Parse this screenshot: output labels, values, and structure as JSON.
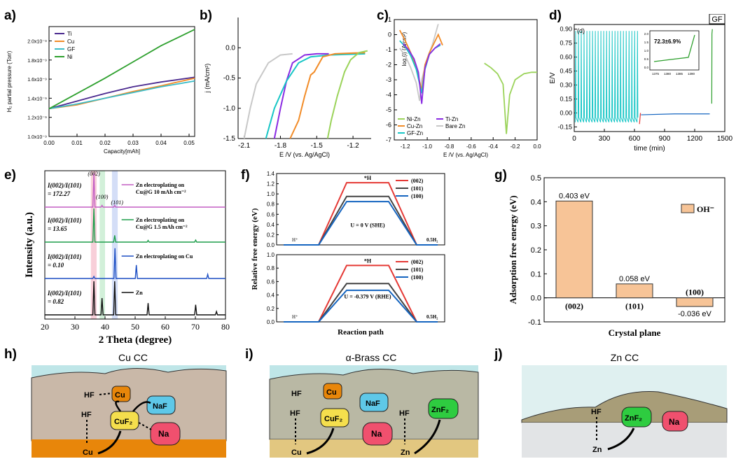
{
  "panels": {
    "a": "a)",
    "b": "b)",
    "c": "c)",
    "d": "d)",
    "e": "e)",
    "f": "f)",
    "g": "g)",
    "h": "h)",
    "i": "i)",
    "j": "j)"
  },
  "colors": {
    "ti": "#4b2a8f",
    "cu": "#f28c28",
    "gf": "#3bbcc7",
    "ni": "#2ea02e",
    "lightgreen": "#9bd35a",
    "grey": "#c8c8c8",
    "cyan": "#18c6c6",
    "purple": "#8a2be2",
    "blue": "#1565c0",
    "red": "#e53935",
    "dgray": "#444444",
    "bar": "#f7c497",
    "barEdge": "#333333",
    "pink": "#c45ec4",
    "xgreen": "#1e9e4b",
    "xblue": "#1d4fc4",
    "black": "#111111"
  },
  "chart_data": [
    {
      "id": "a",
      "type": "line",
      "xlabel": "Capacity[mAh]",
      "ylabel": "H₂ partial pressure (Torr)",
      "xlim": [
        0,
        0.052
      ],
      "ylim": [
        1e-09,
        2.15e-09
      ],
      "xticks": [
        "0.00",
        "0.01",
        "0.02",
        "0.03",
        "0.04",
        "0.05"
      ],
      "xtick_values": [
        0,
        0.01,
        0.02,
        0.03,
        0.04,
        0.05
      ],
      "yticks": [
        "1.0x10⁻⁹",
        "1.2x10⁻⁹",
        "1.4x10⁻⁹",
        "1.6x10⁻⁹",
        "1.8x10⁻⁹",
        "2.0x10⁻⁹"
      ],
      "ytick_values": [
        1e-09,
        1.2e-09,
        1.4e-09,
        1.6e-09,
        1.8e-09,
        2e-09
      ],
      "legend": [
        "Ti",
        "Cu",
        "GF",
        "Ni"
      ],
      "series": [
        {
          "name": "Ti",
          "x": [
            0,
            0.01,
            0.02,
            0.03,
            0.04,
            0.052
          ],
          "y": [
            1.29e-09,
            1.37e-09,
            1.45e-09,
            1.52e-09,
            1.57e-09,
            1.62e-09
          ]
        },
        {
          "name": "Cu",
          "x": [
            0,
            0.01,
            0.02,
            0.03,
            0.04,
            0.052
          ],
          "y": [
            1.29e-09,
            1.33e-09,
            1.4e-09,
            1.47e-09,
            1.53e-09,
            1.61e-09
          ]
        },
        {
          "name": "GF",
          "x": [
            0,
            0.01,
            0.02,
            0.03,
            0.04,
            0.052
          ],
          "y": [
            1.29e-09,
            1.34e-09,
            1.4e-09,
            1.46e-09,
            1.52e-09,
            1.58e-09
          ]
        },
        {
          "name": "Ni",
          "x": [
            0,
            0.01,
            0.02,
            0.03,
            0.04,
            0.052
          ],
          "y": [
            1.29e-09,
            1.45e-09,
            1.61e-09,
            1.78e-09,
            1.95e-09,
            2.12e-09
          ]
        }
      ]
    },
    {
      "id": "b",
      "type": "line",
      "xlabel": "E /V (vs. Ag/AgCl)",
      "ylabel": "j (mA/cm²)",
      "xlim": [
        -2.15,
        -1.05
      ],
      "ylim": [
        -1.5,
        0.5
      ],
      "xticks": [
        "-2.1",
        "-1.8",
        "-1.5",
        "-1.2"
      ],
      "xtick_values": [
        -2.1,
        -1.8,
        -1.5,
        -1.2
      ],
      "yticks": [
        "-1.5",
        "-1.0",
        "-0.5",
        "0.0"
      ],
      "ytick_values": [
        -1.5,
        -1.0,
        -0.5,
        0.0
      ],
      "series": [
        {
          "name": "grey",
          "x": [
            -2.1,
            -2.05,
            -2.0,
            -1.9,
            -1.8,
            -1.7
          ],
          "y": [
            -1.5,
            -1.0,
            -0.6,
            -0.25,
            -0.12,
            -0.1
          ]
        },
        {
          "name": "purple",
          "x": [
            -1.85,
            -1.8,
            -1.75,
            -1.7,
            -1.6,
            -1.5,
            -1.4
          ],
          "y": [
            -1.5,
            -1.0,
            -0.55,
            -0.25,
            -0.12,
            -0.1,
            -0.1
          ]
        },
        {
          "name": "cyan",
          "x": [
            -1.92,
            -1.85,
            -1.75,
            -1.65,
            -1.55,
            -1.4,
            -1.1
          ],
          "y": [
            -1.5,
            -1.0,
            -0.55,
            -0.25,
            -0.15,
            -0.12,
            -0.1
          ]
        },
        {
          "name": "orange",
          "x": [
            -1.72,
            -1.65,
            -1.6,
            -1.55,
            -1.52,
            -1.45,
            -1.35,
            -1.1
          ],
          "y": [
            -1.5,
            -1.2,
            -0.8,
            -0.45,
            -0.4,
            -0.15,
            -0.1,
            -0.08
          ]
        },
        {
          "name": "lightgreen",
          "x": [
            -1.41,
            -1.38,
            -1.33,
            -1.27,
            -1.22,
            -1.15,
            -1.08
          ],
          "y": [
            -1.5,
            -1.2,
            -0.8,
            -0.4,
            -0.2,
            -0.08,
            -0.05
          ]
        }
      ]
    },
    {
      "id": "c",
      "type": "line",
      "xlabel": "E /V (vs. Ag/AgCl)",
      "ylabel": "log (i) (A/cm²)",
      "xlim": [
        -1.3,
        0.0
      ],
      "ylim": [
        -7,
        1
      ],
      "xticks": [
        "-1.2",
        "-1.0",
        "-0.8",
        "-0.6",
        "-0.4",
        "-0.2",
        "0.0"
      ],
      "xtick_values": [
        -1.2,
        -1.0,
        -0.8,
        -0.6,
        -0.4,
        -0.2,
        0.0
      ],
      "yticks": [
        "1",
        "0",
        "-1",
        "-2",
        "-3",
        "-4",
        "-5",
        "-6",
        "-7"
      ],
      "ytick_values": [
        1,
        0,
        -1,
        -2,
        -3,
        -4,
        -5,
        -6,
        -7
      ],
      "legend": [
        "Ni-Zn",
        "Ti-Zn",
        "Cu-Zn",
        "Bare Zn",
        "GF-Zn"
      ],
      "series": [
        {
          "name": "Bare Zn",
          "x": [
            -1.25,
            -1.2,
            -1.15,
            -1.1,
            -1.07,
            -1.05,
            -1.0,
            -0.95,
            -0.9
          ],
          "y": [
            -0.9,
            -1.4,
            -2.2,
            -3.2,
            -4.4,
            -3.0,
            -1.6,
            -0.6,
            0.7
          ]
        },
        {
          "name": "Cu-Zn",
          "x": [
            -1.25,
            -1.2,
            -1.15,
            -1.1,
            -1.05,
            -1.02,
            -0.98,
            -0.94,
            -0.9,
            -0.86
          ],
          "y": [
            0.3,
            -0.4,
            -1.2,
            -2.2,
            -3.7,
            -2.0,
            -1.2,
            -0.6,
            0.0,
            -0.7
          ]
        },
        {
          "name": "GF-Zn",
          "x": [
            -1.25,
            -1.2,
            -1.15,
            -1.1,
            -1.05,
            -1.02,
            -0.98,
            -0.93,
            -0.88
          ],
          "y": [
            -0.4,
            -0.8,
            -1.4,
            -2.3,
            -3.9,
            -2.3,
            -1.3,
            -0.9,
            -0.7
          ]
        },
        {
          "name": "Ti-Zn",
          "x": [
            -1.22,
            -1.17,
            -1.12,
            -1.08,
            -1.05,
            -1.02,
            -0.98,
            -0.93,
            -0.88
          ],
          "y": [
            -0.6,
            -1.0,
            -1.6,
            -2.5,
            -4.6,
            -2.2,
            -1.3,
            -0.9,
            -0.6
          ]
        },
        {
          "name": "Ni-Zn",
          "x": [
            -0.48,
            -0.42,
            -0.36,
            -0.31,
            -0.28,
            -0.25,
            -0.2,
            -0.12,
            -0.05,
            0.0
          ],
          "y": [
            -1.9,
            -2.2,
            -2.6,
            -3.3,
            -6.6,
            -4.0,
            -3.0,
            -2.6,
            -2.5,
            -2.5
          ]
        }
      ]
    },
    {
      "id": "d",
      "type": "line",
      "xlabel": "time (min)",
      "ylabel": "E/V",
      "xlim": [
        0,
        1500
      ],
      "ylim": [
        -0.2,
        2.6
      ],
      "xticks": [
        "0",
        "300",
        "600",
        "900",
        "1200",
        "1500"
      ],
      "xtick_values": [
        0,
        300,
        600,
        900,
        1200,
        1500
      ],
      "yticks": [
        "-0.15",
        "0.00",
        "0.15",
        "0.30",
        "0.45",
        "0.60",
        "0.75",
        "0.90"
      ],
      "ytick_values": [
        -0.15,
        0.0,
        0.15,
        0.3,
        0.45,
        0.6,
        0.75,
        0.9
      ],
      "label_top": "GF",
      "label_inner": "(d)",
      "inset": {
        "annotation": "72.3±6.9%",
        "xticks": [
          "1375",
          "1380",
          "1385",
          "1390"
        ],
        "ytick_labels": [
          "0.0",
          "0.5",
          "1.0",
          "1.5",
          "2.0"
        ]
      }
    },
    {
      "id": "e",
      "type": "line",
      "xlabel": "2 Theta (degree)",
      "ylabel": "Intensity (a.u.)",
      "xlim": [
        20,
        80
      ],
      "xticks": [
        "20",
        "30",
        "40",
        "50",
        "60",
        "70",
        "80"
      ],
      "xtick_values": [
        20,
        30,
        40,
        50,
        60,
        70,
        80
      ],
      "peak_labels": [
        "(002)",
        "(100)",
        "(101)"
      ],
      "series": [
        {
          "name": "Zn electroplating on Cu@G 10 mAh cm⁻²",
          "ratio": "I(002)/I(101)",
          "ratio_value": "= 172.27",
          "peaks": [
            [
              36.3,
              1.0
            ],
            [
              39.0,
              0.05
            ],
            [
              43.2,
              0.05
            ]
          ]
        },
        {
          "name": "Zn electroplating on Cu@G 1.5 mAh cm⁻²",
          "ratio": "I(002)/I(101)",
          "ratio_value": "= 13.65",
          "peaks": [
            [
              36.3,
              1.0
            ],
            [
              43.2,
              0.2
            ],
            [
              54.3,
              0.05
            ],
            [
              70.1,
              0.06
            ]
          ]
        },
        {
          "name": "Zn electroplating on Cu",
          "ratio": "I(002)/I(101)",
          "ratio_value": "= 0.10",
          "peaks": [
            [
              36.3,
              0.06
            ],
            [
              43.3,
              0.9
            ],
            [
              50.4,
              0.4
            ],
            [
              74.1,
              0.12
            ]
          ]
        },
        {
          "name": "Zn",
          "ratio": "I(002)/I(101)",
          "ratio_value": "= 0.82",
          "peaks": [
            [
              36.3,
              1.0
            ],
            [
              39.0,
              0.5
            ],
            [
              43.2,
              1.0
            ],
            [
              54.3,
              0.35
            ],
            [
              70.1,
              0.3
            ],
            [
              77.0,
              0.1
            ]
          ]
        }
      ]
    },
    {
      "id": "f",
      "type": "line",
      "xlabel": "Reaction path",
      "ylabel": "Relative free energy (eV)",
      "ylim": [
        0,
        1.4
      ],
      "yticks": [
        "0.0",
        "0.2",
        "0.4",
        "0.6",
        "0.8",
        "1.0",
        "1.2",
        "1.4"
      ],
      "ytick_values": [
        0,
        0.2,
        0.4,
        0.6,
        0.8,
        1.0,
        1.2,
        1.4
      ],
      "yticks_bottom": [
        "0.0",
        "0.2",
        "0.4",
        "0.6",
        "0.8",
        "1.0"
      ],
      "ytick_values_bottom": [
        0,
        0.2,
        0.4,
        0.6,
        0.8,
        1.0
      ],
      "top": {
        "condition": "U = 0 V (SHE)",
        "state_labels": [
          "H⁺",
          "*H",
          "0.5H₂"
        ],
        "series": [
          {
            "name": "(002)",
            "value": 1.22
          },
          {
            "name": "(101)",
            "value": 0.95
          },
          {
            "name": "(100)",
            "value": 0.85
          }
        ]
      },
      "bottom": {
        "condition": "U = -0.379 V (RHE)",
        "state_labels": [
          "H⁺",
          "*H",
          "0.5H₂"
        ],
        "series": [
          {
            "name": "(002)",
            "value": 0.84
          },
          {
            "name": "(101)",
            "value": 0.57
          },
          {
            "name": "(100)",
            "value": 0.47
          }
        ]
      }
    },
    {
      "id": "g",
      "type": "bar",
      "xlabel": "Crystal plane",
      "ylabel": "Adsorption free energy (eV)",
      "ylim": [
        -0.1,
        0.5
      ],
      "yticks": [
        "-0.1",
        "0.0",
        "0.1",
        "0.2",
        "0.3",
        "0.4",
        "0.5"
      ],
      "ytick_values": [
        -0.1,
        0.0,
        0.1,
        0.2,
        0.3,
        0.4,
        0.5
      ],
      "categories": [
        "(002)",
        "(101)",
        "(100)"
      ],
      "values": [
        0.403,
        0.058,
        -0.036
      ],
      "value_labels": [
        "0.403 eV",
        "0.058 eV",
        "-0.036 eV"
      ],
      "legend": [
        "OH⁻"
      ]
    }
  ],
  "schematics": {
    "h": {
      "title": "Cu CC",
      "labels": [
        "HF",
        "Cu",
        "NaF",
        "HF",
        "CuF₂",
        "Cu",
        "Na"
      ]
    },
    "i": {
      "title": "α-Brass CC",
      "labels": [
        "HF",
        "Cu",
        "NaF",
        "HF",
        "CuF₂",
        "Cu",
        "Na",
        "HF",
        "ZnF₂",
        "Zn"
      ]
    },
    "j": {
      "title": "Zn CC",
      "labels": [
        "HF",
        "ZnF₂",
        "Na",
        "Zn"
      ]
    }
  }
}
